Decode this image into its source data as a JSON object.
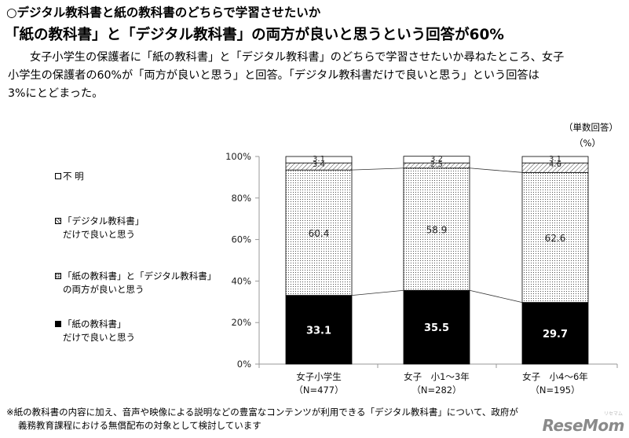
{
  "heading": {
    "line1": "○デジタル教科書と紙の教科書のどちらで学習させたいか",
    "line2": "「紙の教科書」と「デジタル教科書」の両方が良いと思うという回答が60%"
  },
  "paragraph": {
    "line1": "女子小学生の保護者に「紙の教科書」と「デジタル教科書」のどちらで学習させたいか尋ねたところ、女子",
    "line2": "小学生の保護者の60%が「両方が良いと思う」と回答。「デジタル教科書だけで良いと思う」という回答は",
    "line3": "3%にとどまった。"
  },
  "units": {
    "answer_type": "（単数回答）",
    "percent": "（%）"
  },
  "legend": [
    {
      "key": "unknown",
      "line1": "不 明",
      "line2": ""
    },
    {
      "key": "digital_only",
      "line1": "「デジタル教科書」",
      "line2": "だけで良いと思う"
    },
    {
      "key": "both",
      "line1": "「紙の教科書」と「デジタル教科書」",
      "line2": "の両方が良いと思う"
    },
    {
      "key": "paper_only",
      "line1": "「紙の教科書」",
      "line2": "だけで良いと思う"
    }
  ],
  "colors": {
    "paper_only": "#000000",
    "both": "#ffffff",
    "digital_only": "#ffffff",
    "unknown": "#ffffff",
    "axis": "#999999"
  },
  "chart_data": {
    "type": "bar",
    "stacked": true,
    "categories": [
      {
        "name": "女子小学生",
        "n": "（N=477）"
      },
      {
        "name": "女子　小1～3年",
        "n": "（N=282）"
      },
      {
        "name": "女子　小4～6年",
        "n": "（N=195）"
      }
    ],
    "series": [
      {
        "name": "「紙の教科書」だけで良いと思う",
        "key": "paper_only",
        "values": [
          33.1,
          35.5,
          29.7
        ]
      },
      {
        "name": "「紙の教科書」と「デジタル教科書」の両方が良いと思う",
        "key": "both",
        "values": [
          60.4,
          58.9,
          62.6
        ]
      },
      {
        "name": "「デジタル教科書」だけで良いと思う",
        "key": "digital_only",
        "values": [
          3.4,
          2.5,
          4.6
        ]
      },
      {
        "name": "不明",
        "key": "unknown",
        "values": [
          3.1,
          3.2,
          3.1
        ]
      }
    ],
    "yticks": [
      "0%",
      "20%",
      "40%",
      "60%",
      "80%",
      "100%"
    ],
    "ylim": [
      0,
      100
    ],
    "grid": false,
    "legend_position": "left"
  },
  "footnote": {
    "line1": "※紙の教科書の内容に加え、音声や映像による説明などの豊富なコンテンツが利用できる「デジタル教科書」について、政府が",
    "line2": "義務教育課程における無償配布の対象として検討しています"
  },
  "logo": {
    "text": "ReseMom",
    "sub": "リセマム"
  }
}
